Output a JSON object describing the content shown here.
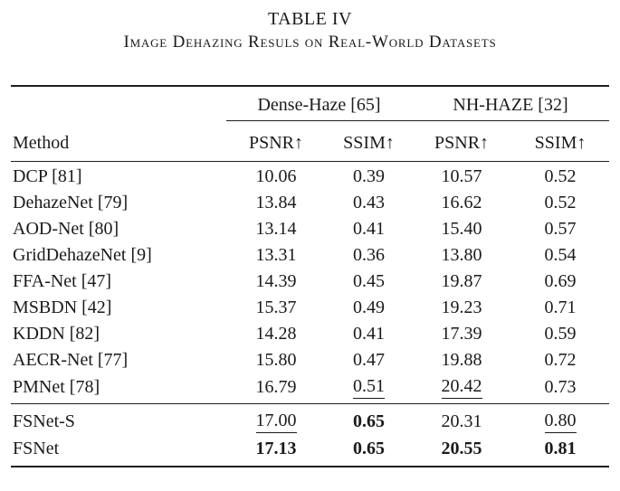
{
  "title": "TABLE IV",
  "subtitle": "Image Dehazing Resuls on Real-World Datasets",
  "colors": {
    "text": "#1a1a1a",
    "background": "#ffffff",
    "rule": "#1f1f1f"
  },
  "table": {
    "group_headers": [
      {
        "label": "Dense-Haze [65]",
        "span": 2
      },
      {
        "label": "NH-HAZE [32]",
        "span": 2
      }
    ],
    "method_header": "Method",
    "column_headers": [
      "PSNR↑",
      "SSIM↑",
      "PSNR↑",
      "SSIM↑"
    ],
    "style_key": {
      "n": "normal",
      "b": "bold",
      "u": "underline"
    },
    "rows": [
      {
        "method": "DCP [81]",
        "values": [
          "10.06",
          "0.39",
          "10.57",
          "0.52"
        ],
        "styles": [
          "n",
          "n",
          "n",
          "n"
        ]
      },
      {
        "method": "DehazeNet [79]",
        "values": [
          "13.84",
          "0.43",
          "16.62",
          "0.52"
        ],
        "styles": [
          "n",
          "n",
          "n",
          "n"
        ]
      },
      {
        "method": "AOD-Net [80]",
        "values": [
          "13.14",
          "0.41",
          "15.40",
          "0.57"
        ],
        "styles": [
          "n",
          "n",
          "n",
          "n"
        ]
      },
      {
        "method": "GridDehazeNet [9]",
        "values": [
          "13.31",
          "0.36",
          "13.80",
          "0.54"
        ],
        "styles": [
          "n",
          "n",
          "n",
          "n"
        ]
      },
      {
        "method": "FFA-Net [47]",
        "values": [
          "14.39",
          "0.45",
          "19.87",
          "0.69"
        ],
        "styles": [
          "n",
          "n",
          "n",
          "n"
        ]
      },
      {
        "method": "MSBDN [42]",
        "values": [
          "15.37",
          "0.49",
          "19.23",
          "0.71"
        ],
        "styles": [
          "n",
          "n",
          "n",
          "n"
        ]
      },
      {
        "method": "KDDN [82]",
        "values": [
          "14.28",
          "0.41",
          "17.39",
          "0.59"
        ],
        "styles": [
          "n",
          "n",
          "n",
          "n"
        ]
      },
      {
        "method": "AECR-Net [77]",
        "values": [
          "15.80",
          "0.47",
          "19.88",
          "0.72"
        ],
        "styles": [
          "n",
          "n",
          "n",
          "n"
        ]
      },
      {
        "method": "PMNet [78]",
        "values": [
          "16.79",
          "0.51",
          "20.42",
          "0.73"
        ],
        "styles": [
          "n",
          "u",
          "u",
          "n"
        ]
      }
    ],
    "footer_rows": [
      {
        "method": "FSNet-S",
        "values": [
          "17.00",
          "0.65",
          "20.31",
          "0.80"
        ],
        "styles": [
          "u",
          "b",
          "n",
          "u"
        ]
      },
      {
        "method": "FSNet",
        "values": [
          "17.13",
          "0.65",
          "20.55",
          "0.81"
        ],
        "styles": [
          "b",
          "b",
          "b",
          "b"
        ]
      }
    ]
  }
}
